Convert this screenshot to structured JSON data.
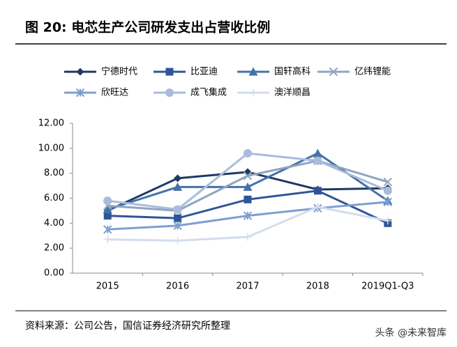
{
  "chart_data": {
    "type": "line",
    "title": "图 20:  电芯生产公司研发支出占营收比例",
    "source": "资料来源：公司公告，国信证券经济研究所整理",
    "watermark": "头条 @未来智库",
    "categories": [
      "2015",
      "2016",
      "2017",
      "2018",
      "2019Q1-Q3"
    ],
    "ylim": [
      0,
      12
    ],
    "yticks": [
      {
        "value": 0,
        "label": "0.00"
      },
      {
        "value": 2,
        "label": "2.00"
      },
      {
        "value": 4,
        "label": "4.00"
      },
      {
        "value": 6,
        "label": "6.00"
      },
      {
        "value": 8,
        "label": "8.00"
      },
      {
        "value": 10,
        "label": "10.00"
      },
      {
        "value": 12,
        "label": "12.00"
      }
    ],
    "grid": false,
    "series": [
      {
        "name": "宁德时代",
        "color": "#1f3864",
        "marker": "diamond",
        "values": [
          5.0,
          7.6,
          8.1,
          6.7,
          6.8
        ]
      },
      {
        "name": "比亚迪",
        "color": "#2f5597",
        "marker": "square",
        "values": [
          4.6,
          4.4,
          5.9,
          6.6,
          4.0
        ]
      },
      {
        "name": "国轩高科",
        "color": "#4472a8",
        "marker": "triangle",
        "values": [
          5.1,
          6.9,
          6.9,
          9.6,
          5.8
        ]
      },
      {
        "name": "亿纬锂能",
        "color": "#8fa5bf",
        "marker": "x",
        "values": [
          5.4,
          5.0,
          7.8,
          9.0,
          7.3
        ]
      },
      {
        "name": "欣旺达",
        "color": "#7e9ed2",
        "marker": "star",
        "values": [
          3.5,
          3.8,
          4.6,
          5.2,
          5.7
        ]
      },
      {
        "name": "成飞集成",
        "color": "#a8bcdc",
        "marker": "circle",
        "values": [
          5.8,
          5.1,
          9.6,
          9.0,
          6.6
        ]
      },
      {
        "name": "澳洋顺昌",
        "color": "#d3ddec",
        "marker": "plus",
        "values": [
          2.7,
          2.6,
          2.9,
          5.3,
          4.2
        ]
      }
    ]
  }
}
